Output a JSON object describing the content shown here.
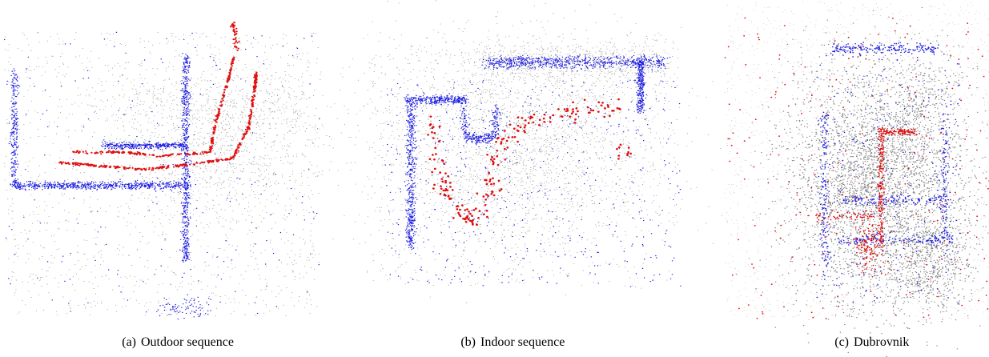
{
  "figure": {
    "panels": [
      {
        "label": "(a)",
        "caption": "Outdoor sequence"
      },
      {
        "label": "(b)",
        "caption": "Indoor sequence"
      },
      {
        "label": "(c)",
        "caption": "Dubrovnik"
      }
    ]
  }
}
